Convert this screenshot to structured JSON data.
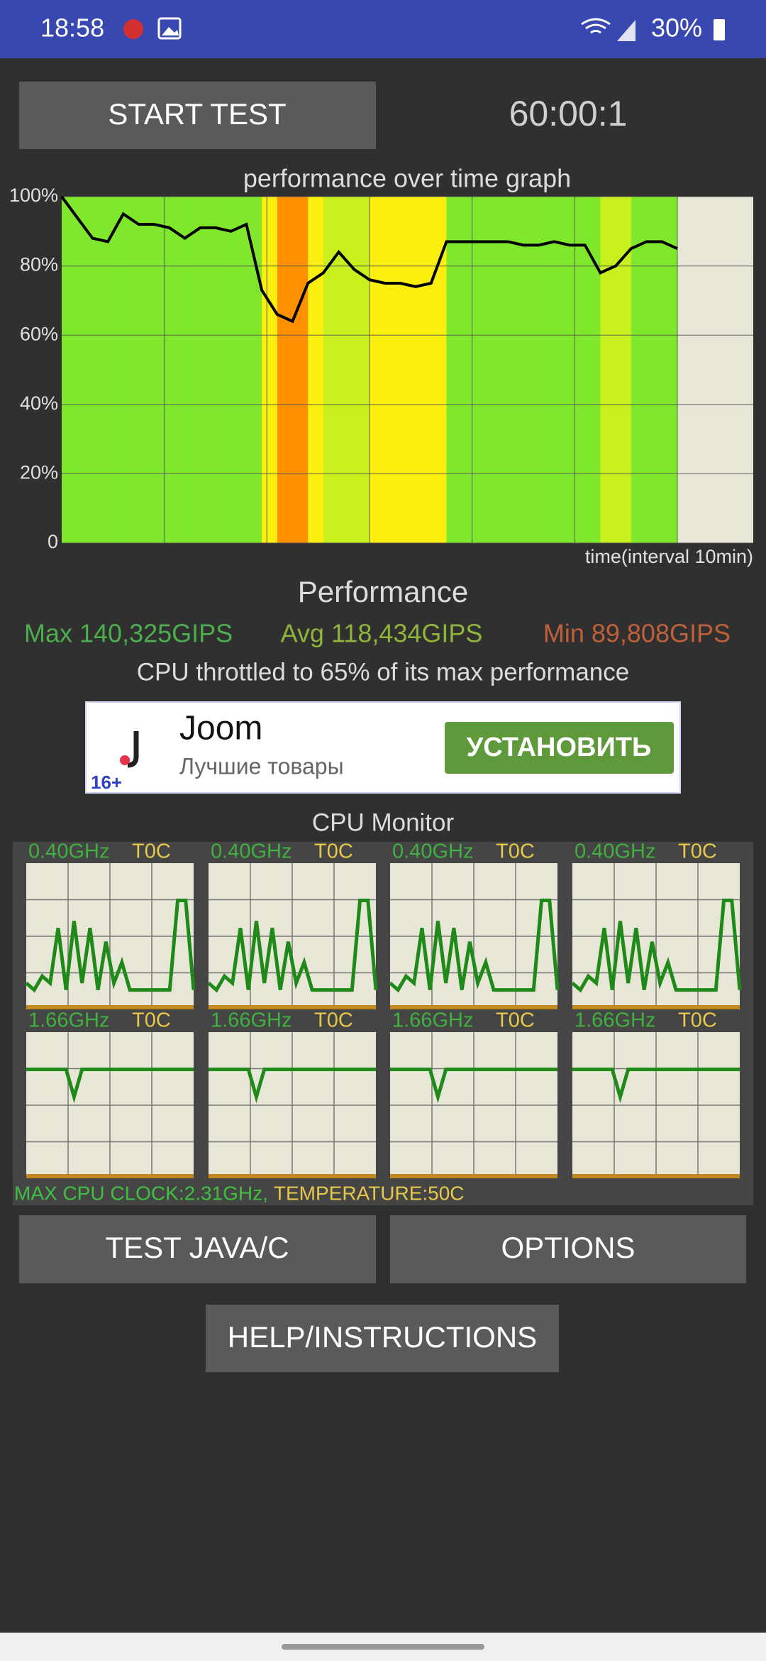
{
  "status_bar": {
    "time": "18:58",
    "battery": "30%"
  },
  "start_button": "START TEST",
  "timer": "60:00:1",
  "performance_graph": {
    "type": "area",
    "title": "performance over time graph",
    "x_label": "time(interval 10min)",
    "x": [
      0,
      1.5,
      3,
      4.5,
      6,
      7.5,
      9,
      10.5,
      12,
      13.5,
      15,
      16.5,
      18,
      19.5,
      21,
      22.5,
      24,
      25.5,
      27,
      28.5,
      30,
      31.5,
      33,
      34.5,
      36,
      37.5,
      39,
      40.5,
      42,
      43.5,
      45,
      46.5,
      48,
      49.5,
      51,
      52.5,
      54,
      55.5,
      57,
      58.5,
      60
    ],
    "values": [
      100,
      94,
      88,
      87,
      95,
      92,
      92,
      91,
      88,
      91,
      91,
      90,
      92,
      73,
      66,
      64,
      75,
      78,
      84,
      79,
      76,
      75,
      75,
      74,
      75,
      87,
      87,
      87,
      87,
      87,
      86,
      86,
      87,
      86,
      86,
      78,
      80,
      85,
      87,
      87,
      85
    ],
    "xlim": [
      0,
      67.4
    ],
    "xticks": [
      10,
      20,
      30,
      40,
      50,
      60
    ],
    "ylim": [
      0,
      100
    ],
    "yticks": [
      0,
      {
        "value": 20,
        "label": "20%"
      },
      {
        "value": 40,
        "label": "40%"
      },
      {
        "value": 60,
        "label": "60%"
      },
      {
        "value": 80,
        "label": "80%"
      },
      {
        "value": 100,
        "label": "100%"
      }
    ],
    "grid": true
  },
  "performance": {
    "title": "Performance",
    "max": "Max 140,325GIPS",
    "avg": "Avg 118,434GIPS",
    "min": "Min 89,808GIPS",
    "summary": "CPU throttled to 65% of its max performance"
  },
  "ad": {
    "name": "Joom",
    "tagline": "Лучшие товары",
    "button": "УСТАНОВИТЬ",
    "age": "16+"
  },
  "cpu_monitor": {
    "title": "CPU Monitor",
    "ylim": [
      0,
      100
    ],
    "cores": [
      {
        "clock": "0.40GHz",
        "temp": "T0C",
        "history": [
          15,
          10,
          20,
          15,
          55,
          10,
          60,
          15,
          55,
          10,
          45,
          15,
          30,
          10,
          10,
          10,
          10,
          10,
          10,
          75,
          75,
          10
        ]
      },
      {
        "clock": "0.40GHz",
        "temp": "T0C",
        "history": [
          15,
          10,
          20,
          15,
          55,
          10,
          60,
          15,
          55,
          10,
          45,
          15,
          30,
          10,
          10,
          10,
          10,
          10,
          10,
          75,
          75,
          10
        ]
      },
      {
        "clock": "0.40GHz",
        "temp": "T0C",
        "history": [
          15,
          10,
          20,
          15,
          55,
          10,
          60,
          15,
          55,
          10,
          45,
          15,
          30,
          10,
          10,
          10,
          10,
          10,
          10,
          75,
          75,
          10
        ]
      },
      {
        "clock": "0.40GHz",
        "temp": "T0C",
        "history": [
          15,
          10,
          20,
          15,
          55,
          10,
          60,
          15,
          55,
          10,
          45,
          15,
          30,
          10,
          10,
          10,
          10,
          10,
          10,
          75,
          75,
          10
        ]
      },
      {
        "clock": "1.66GHz",
        "temp": "T0C",
        "history": [
          75,
          75,
          75,
          75,
          75,
          75,
          55,
          75,
          75,
          75,
          75,
          75,
          75,
          75,
          75,
          75,
          75,
          75,
          75,
          75,
          75,
          75
        ]
      },
      {
        "clock": "1.66GHz",
        "temp": "T0C",
        "history": [
          75,
          75,
          75,
          75,
          75,
          75,
          55,
          75,
          75,
          75,
          75,
          75,
          75,
          75,
          75,
          75,
          75,
          75,
          75,
          75,
          75,
          75
        ]
      },
      {
        "clock": "1.66GHz",
        "temp": "T0C",
        "history": [
          75,
          75,
          75,
          75,
          75,
          75,
          55,
          75,
          75,
          75,
          75,
          75,
          75,
          75,
          75,
          75,
          75,
          75,
          75,
          75,
          75,
          75
        ]
      },
      {
        "clock": "1.66GHz",
        "temp": "T0C",
        "history": [
          75,
          75,
          75,
          75,
          75,
          75,
          55,
          75,
          75,
          75,
          75,
          75,
          75,
          75,
          75,
          75,
          75,
          75,
          75,
          75,
          75,
          75
        ]
      }
    ],
    "footer_clock": "MAX CPU CLOCK:2.31GHz,",
    "footer_temp": "TEMPERATURE:50C"
  },
  "buttons": {
    "test": "TEST JAVA/C",
    "options": "OPTIONS",
    "help": "HELP/INSTRUCTIONS"
  }
}
